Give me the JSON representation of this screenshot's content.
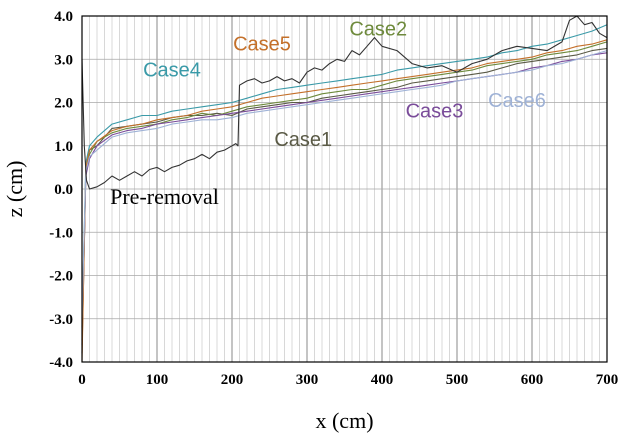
{
  "chart_data": {
    "type": "line",
    "xlabel": "x (cm)",
    "ylabel": "z (cm)",
    "xlim": [
      0,
      700
    ],
    "ylim": [
      -4.0,
      4.0
    ],
    "x_ticks": [
      "0",
      "100",
      "200",
      "300",
      "400",
      "500",
      "600",
      "700"
    ],
    "y_ticks": [
      "4.0",
      "3.0",
      "2.0",
      "1.0",
      "0.0",
      "-1.0",
      "-2.0",
      "-3.0",
      "-4.0"
    ],
    "y_tick_values": [
      4,
      3,
      2,
      1,
      0,
      -1,
      -2,
      -3,
      -4
    ],
    "grid": {
      "major_x_step": 100,
      "minor_x_step": 10,
      "major_y_step": 1
    },
    "series": [
      {
        "name": "Case1",
        "color": "#5a5a46",
        "x": [
          0,
          5,
          10,
          20,
          40,
          60,
          80,
          100,
          120,
          140,
          160,
          180,
          200,
          220,
          240,
          260,
          280,
          300,
          320,
          340,
          360,
          380,
          400,
          420,
          440,
          460,
          480,
          500,
          520,
          540,
          560,
          580,
          600,
          620,
          640,
          660,
          680,
          700
        ],
        "y": [
          -3.8,
          0.3,
          0.9,
          1.0,
          1.4,
          1.45,
          1.5,
          1.55,
          1.65,
          1.7,
          1.7,
          1.75,
          1.7,
          1.85,
          1.9,
          1.95,
          2.0,
          2.0,
          2.1,
          2.15,
          2.2,
          2.25,
          2.3,
          2.35,
          2.45,
          2.5,
          2.55,
          2.6,
          2.65,
          2.7,
          2.8,
          2.9,
          2.95,
          3.0,
          3.05,
          3.1,
          3.2,
          3.25
        ]
      },
      {
        "name": "Case2",
        "color": "#6e8a3c",
        "x": [
          0,
          5,
          10,
          20,
          40,
          60,
          80,
          100,
          120,
          140,
          160,
          180,
          200,
          220,
          240,
          260,
          280,
          300,
          320,
          340,
          360,
          380,
          400,
          420,
          440,
          460,
          480,
          500,
          520,
          540,
          560,
          580,
          600,
          620,
          640,
          660,
          680,
          700
        ],
        "y": [
          -3.5,
          0.4,
          0.8,
          1.1,
          1.3,
          1.4,
          1.45,
          1.5,
          1.6,
          1.65,
          1.75,
          1.7,
          1.8,
          1.9,
          1.95,
          2.0,
          2.05,
          2.1,
          2.2,
          2.25,
          2.3,
          2.3,
          2.4,
          2.5,
          2.55,
          2.6,
          2.65,
          2.7,
          2.75,
          2.85,
          2.9,
          2.95,
          3.0,
          3.1,
          3.15,
          3.2,
          3.3,
          3.4
        ]
      },
      {
        "name": "Case3",
        "color": "#7a4c9a",
        "x": [
          0,
          5,
          10,
          20,
          40,
          60,
          80,
          100,
          120,
          140,
          160,
          180,
          200,
          220,
          240,
          260,
          280,
          300,
          320,
          340,
          360,
          380,
          400,
          420,
          440,
          460,
          480,
          500,
          520,
          540,
          560,
          580,
          600,
          620,
          640,
          660,
          680,
          700
        ],
        "y": [
          -3.6,
          0.3,
          0.7,
          1.0,
          1.25,
          1.35,
          1.4,
          1.5,
          1.55,
          1.6,
          1.65,
          1.7,
          1.75,
          1.8,
          1.85,
          1.9,
          1.95,
          2.0,
          2.05,
          2.1,
          2.15,
          2.2,
          2.25,
          2.3,
          2.35,
          2.4,
          2.45,
          2.5,
          2.55,
          2.6,
          2.65,
          2.7,
          2.8,
          2.85,
          2.95,
          3.0,
          3.1,
          3.15
        ]
      },
      {
        "name": "Case4",
        "color": "#3a9aa8",
        "x": [
          0,
          5,
          10,
          20,
          40,
          60,
          80,
          100,
          120,
          140,
          160,
          180,
          200,
          220,
          240,
          260,
          280,
          300,
          320,
          340,
          360,
          380,
          400,
          420,
          440,
          460,
          480,
          500,
          520,
          540,
          560,
          580,
          600,
          620,
          640,
          660,
          680,
          700
        ],
        "y": [
          -3.2,
          0.6,
          1.0,
          1.2,
          1.5,
          1.6,
          1.7,
          1.7,
          1.8,
          1.85,
          1.9,
          1.95,
          2.0,
          2.1,
          2.2,
          2.3,
          2.35,
          2.4,
          2.45,
          2.5,
          2.55,
          2.6,
          2.65,
          2.75,
          2.8,
          2.85,
          2.9,
          2.95,
          3.0,
          3.05,
          3.15,
          3.2,
          3.3,
          3.35,
          3.45,
          3.55,
          3.65,
          3.8
        ]
      },
      {
        "name": "Case5",
        "color": "#c4702a",
        "x": [
          0,
          5,
          10,
          20,
          40,
          60,
          80,
          100,
          120,
          140,
          160,
          180,
          200,
          220,
          240,
          260,
          280,
          300,
          320,
          340,
          360,
          380,
          400,
          420,
          440,
          460,
          480,
          500,
          520,
          540,
          560,
          580,
          600,
          620,
          640,
          660,
          680,
          700
        ],
        "y": [
          -4.0,
          0.5,
          0.9,
          1.1,
          1.35,
          1.45,
          1.5,
          1.6,
          1.65,
          1.7,
          1.8,
          1.85,
          1.9,
          2.0,
          2.1,
          2.15,
          2.2,
          2.25,
          2.3,
          2.35,
          2.4,
          2.45,
          2.5,
          2.55,
          2.6,
          2.65,
          2.7,
          2.75,
          2.8,
          2.9,
          2.95,
          3.0,
          3.05,
          3.15,
          3.2,
          3.3,
          3.35,
          3.45
        ]
      },
      {
        "name": "Case6",
        "color": "#9fb2d6",
        "x": [
          0,
          5,
          10,
          20,
          40,
          60,
          80,
          100,
          120,
          140,
          160,
          180,
          200,
          220,
          240,
          260,
          280,
          300,
          320,
          340,
          360,
          380,
          400,
          420,
          440,
          460,
          480,
          500,
          520,
          540,
          560,
          580,
          600,
          620,
          640,
          660,
          680,
          700
        ],
        "y": [
          -3.0,
          0.4,
          0.75,
          0.9,
          1.2,
          1.3,
          1.35,
          1.4,
          1.5,
          1.55,
          1.6,
          1.6,
          1.65,
          1.75,
          1.8,
          1.85,
          1.9,
          1.95,
          2.0,
          2.05,
          2.1,
          2.15,
          2.2,
          2.25,
          2.3,
          2.35,
          2.4,
          2.5,
          2.55,
          2.6,
          2.65,
          2.7,
          2.75,
          2.85,
          2.9,
          3.0,
          3.1,
          3.2
        ]
      },
      {
        "name": "Pre-removal",
        "color": "#333333",
        "x": [
          0,
          3,
          6,
          10,
          20,
          30,
          40,
          50,
          60,
          70,
          80,
          90,
          100,
          110,
          120,
          130,
          140,
          150,
          160,
          170,
          180,
          190,
          200,
          205,
          208,
          210,
          220,
          230,
          240,
          250,
          260,
          270,
          280,
          290,
          300,
          310,
          320,
          330,
          340,
          350,
          360,
          370,
          380,
          390,
          400,
          420,
          440,
          460,
          480,
          500,
          520,
          540,
          560,
          580,
          600,
          620,
          640,
          650,
          660,
          670,
          680,
          690,
          700
        ],
        "y": [
          3.0,
          1.0,
          0.2,
          0.0,
          0.05,
          0.15,
          0.3,
          0.2,
          0.3,
          0.4,
          0.3,
          0.45,
          0.5,
          0.4,
          0.5,
          0.55,
          0.65,
          0.7,
          0.8,
          0.7,
          0.85,
          0.9,
          1.0,
          1.05,
          1.0,
          2.4,
          2.5,
          2.55,
          2.45,
          2.5,
          2.6,
          2.5,
          2.55,
          2.45,
          2.7,
          2.8,
          2.75,
          2.9,
          3.0,
          2.95,
          3.2,
          3.1,
          3.3,
          3.5,
          3.3,
          3.2,
          2.9,
          2.8,
          2.85,
          2.7,
          2.9,
          3.0,
          3.2,
          3.3,
          3.25,
          3.2,
          3.4,
          3.9,
          4.0,
          3.8,
          3.85,
          3.6,
          3.5
        ]
      }
    ],
    "annotations": [
      {
        "text": "Case1",
        "x": 295,
        "y": 1.0,
        "color": "#5a5a46"
      },
      {
        "text": "Case2",
        "x": 395,
        "y": 3.55,
        "color": "#6e8a3c"
      },
      {
        "text": "Case3",
        "x": 470,
        "y": 1.65,
        "color": "#7a4c9a"
      },
      {
        "text": "Case4",
        "x": 120,
        "y": 2.6,
        "color": "#3a9aa8"
      },
      {
        "text": "Case5",
        "x": 240,
        "y": 3.2,
        "color": "#c4702a"
      },
      {
        "text": "Case6",
        "x": 580,
        "y": 1.9,
        "color": "#9fb2d6"
      },
      {
        "text": "Pre-removal",
        "x": 110,
        "y": -0.35,
        "color": "#000000"
      }
    ]
  }
}
